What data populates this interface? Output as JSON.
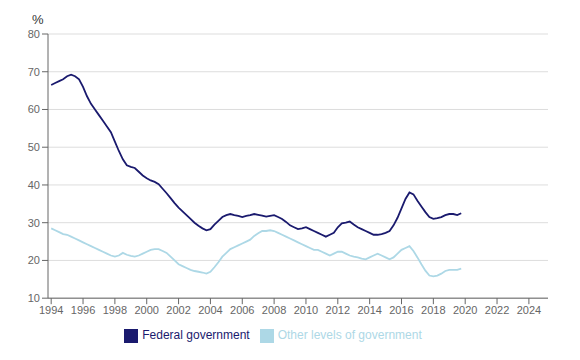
{
  "chart_data": {
    "type": "line",
    "ylabel": "%",
    "grid": true,
    "legend": "bottom",
    "x": [
      1994,
      1994.25,
      1994.5,
      1994.75,
      1995,
      1995.25,
      1995.5,
      1995.75,
      1996,
      1996.25,
      1996.5,
      1996.75,
      1997,
      1997.25,
      1997.5,
      1997.75,
      1998,
      1998.25,
      1998.5,
      1998.75,
      1999,
      1999.25,
      1999.5,
      1999.75,
      2000,
      2000.25,
      2000.5,
      2000.75,
      2001,
      2001.25,
      2001.5,
      2001.75,
      2002,
      2002.25,
      2002.5,
      2002.75,
      2003,
      2003.25,
      2003.5,
      2003.75,
      2004,
      2004.25,
      2004.5,
      2004.75,
      2005,
      2005.25,
      2005.5,
      2005.75,
      2006,
      2006.25,
      2006.5,
      2006.75,
      2007,
      2007.25,
      2007.5,
      2007.75,
      2008,
      2008.25,
      2008.5,
      2008.75,
      2009,
      2009.25,
      2009.5,
      2009.75,
      2010,
      2010.25,
      2010.5,
      2010.75,
      2011,
      2011.25,
      2011.5,
      2011.75,
      2012,
      2012.25,
      2012.5,
      2012.75,
      2013,
      2013.25,
      2013.5,
      2013.75,
      2014,
      2014.25,
      2014.5,
      2014.75,
      2015,
      2015.25,
      2015.5,
      2015.75,
      2016,
      2016.25,
      2016.5,
      2016.75,
      2017,
      2017.25,
      2017.5,
      2017.75,
      2018,
      2018.25,
      2018.5,
      2018.75,
      2019,
      2019.25,
      2019.5,
      2019.75
    ],
    "series": [
      {
        "name": "Federal government",
        "color": "#1a1a6e",
        "values": [
          66.5,
          67.0,
          67.5,
          68.0,
          68.8,
          69.2,
          68.8,
          68.0,
          66.0,
          63.5,
          61.5,
          60.0,
          58.5,
          57.0,
          55.5,
          54.0,
          51.5,
          49.0,
          46.8,
          45.2,
          44.8,
          44.5,
          43.5,
          42.5,
          41.8,
          41.2,
          40.8,
          40.2,
          39.0,
          37.8,
          36.5,
          35.2,
          34.0,
          33.0,
          32.0,
          31.0,
          30.0,
          29.2,
          28.5,
          28.0,
          28.3,
          29.5,
          30.5,
          31.5,
          32.0,
          32.3,
          32.0,
          31.8,
          31.5,
          31.8,
          32.0,
          32.3,
          32.1,
          31.9,
          31.6,
          31.8,
          32.0,
          31.5,
          31.0,
          30.2,
          29.3,
          28.8,
          28.3,
          28.5,
          28.8,
          28.3,
          27.8,
          27.3,
          26.8,
          26.3,
          26.8,
          27.3,
          28.8,
          29.8,
          30.0,
          30.3,
          29.5,
          28.8,
          28.3,
          27.8,
          27.3,
          26.8,
          26.8,
          27.0,
          27.3,
          27.8,
          29.3,
          31.3,
          33.8,
          36.3,
          38.0,
          37.5,
          35.8,
          34.3,
          32.8,
          31.5,
          31.0,
          31.2,
          31.5,
          32.0,
          32.3,
          32.3,
          32.0,
          32.5
        ]
      },
      {
        "name": "Other levels of government",
        "color": "#add8e6",
        "values": [
          28.5,
          28.0,
          27.5,
          27.0,
          26.8,
          26.3,
          25.8,
          25.3,
          24.8,
          24.3,
          23.8,
          23.3,
          22.8,
          22.3,
          21.8,
          21.3,
          21.0,
          21.3,
          22.0,
          21.5,
          21.2,
          21.0,
          21.3,
          21.8,
          22.3,
          22.8,
          23.0,
          23.0,
          22.5,
          22.0,
          21.0,
          20.0,
          19.0,
          18.5,
          18.0,
          17.5,
          17.2,
          17.0,
          16.8,
          16.5,
          17.0,
          18.2,
          19.5,
          21.0,
          22.0,
          23.0,
          23.5,
          24.0,
          24.5,
          25.0,
          25.5,
          26.5,
          27.2,
          27.8,
          27.8,
          28.0,
          27.8,
          27.3,
          26.8,
          26.3,
          25.8,
          25.3,
          24.8,
          24.3,
          23.8,
          23.3,
          22.8,
          22.8,
          22.3,
          21.8,
          21.3,
          21.8,
          22.3,
          22.3,
          21.8,
          21.3,
          21.0,
          20.8,
          20.5,
          20.3,
          20.8,
          21.3,
          21.8,
          21.3,
          20.8,
          20.3,
          20.8,
          21.8,
          22.8,
          23.3,
          23.8,
          22.5,
          20.8,
          19.0,
          17.3,
          16.0,
          15.8,
          16.0,
          16.5,
          17.2,
          17.5,
          17.5,
          17.5,
          17.8
        ]
      }
    ],
    "xlim": [
      1993.8,
      2025.2
    ],
    "xticks": [
      1994,
      1996,
      1998,
      2000,
      2002,
      2004,
      2006,
      2008,
      2010,
      2012,
      2014,
      2016,
      2018,
      2020,
      2022,
      2024
    ],
    "ylim": [
      10,
      80
    ],
    "yticks": [
      10,
      20,
      30,
      40,
      50,
      60,
      70,
      80
    ]
  }
}
